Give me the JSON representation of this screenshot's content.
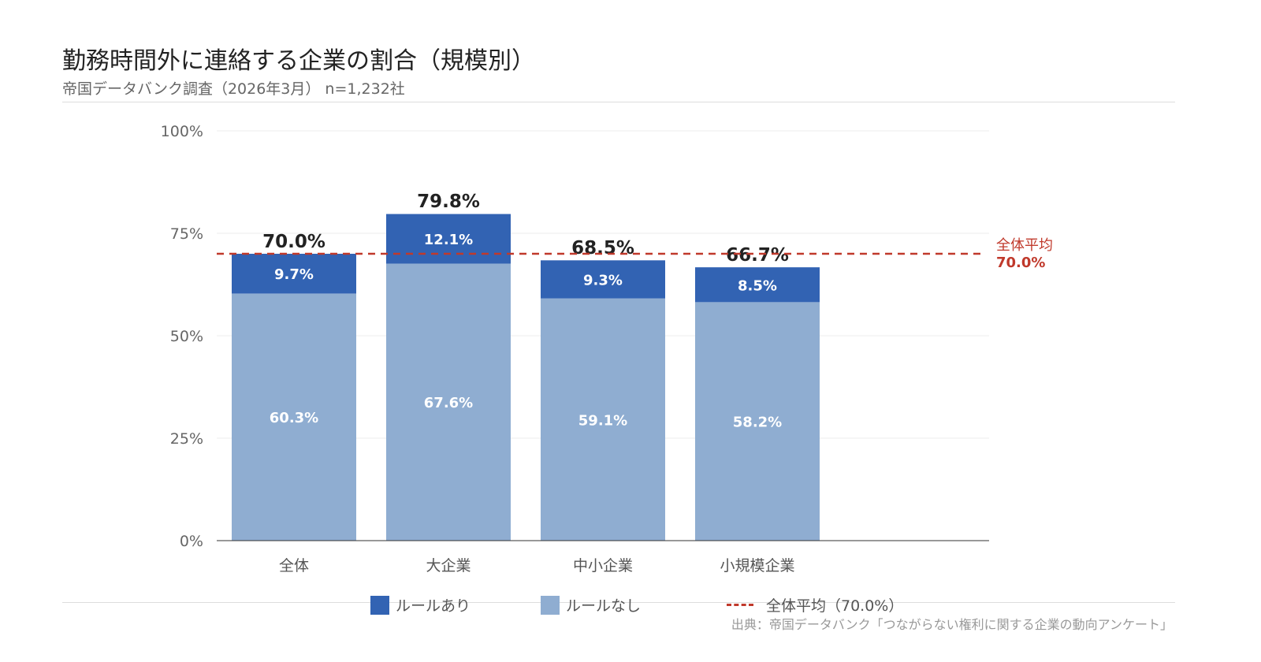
{
  "header": {
    "title": "勤務時間外に連絡する企業の割合（規模別）",
    "subtitle": "帝国データバンク調査（2026年3月） n=1,232社"
  },
  "colors": {
    "rule_yes": "#3263b3",
    "rule_no": "#8fadd1",
    "average": "#c0392b"
  },
  "chart_data": {
    "type": "bar",
    "stacked": true,
    "categories": [
      "全体",
      "大企業",
      "中小企業",
      "小規模企業"
    ],
    "series": [
      {
        "name": "ルールなし",
        "values": [
          60.3,
          67.6,
          59.1,
          58.2
        ],
        "labels": [
          "60.3%",
          "67.6%",
          "59.1%",
          "58.2%"
        ]
      },
      {
        "name": "ルールあり",
        "values": [
          9.7,
          12.1,
          9.3,
          8.5
        ],
        "labels": [
          "9.7%",
          "12.1%",
          "9.3%",
          "8.5%"
        ]
      }
    ],
    "totals": [
      70.0,
      79.8,
      68.5,
      66.7
    ],
    "total_labels": [
      "70.0%",
      "79.8%",
      "68.5%",
      "66.7%"
    ],
    "ylim": [
      0,
      100
    ],
    "yticks": [
      0,
      25,
      50,
      75,
      100
    ],
    "ytick_labels": [
      "0%",
      "25%",
      "50%",
      "75%",
      "100%"
    ],
    "grid": true,
    "reference_line": {
      "value": 70.0,
      "label": "全体平均",
      "value_label": "70.0%",
      "legend": "全体平均（70.0%）"
    },
    "legend": [
      "ルールあり",
      "ルールなし",
      "全体平均（70.0%）"
    ],
    "legend_position": "bottom"
  },
  "footer": {
    "source": "出典：帝国データバンク「つながらない権利に関する企業の動向アンケート」"
  }
}
